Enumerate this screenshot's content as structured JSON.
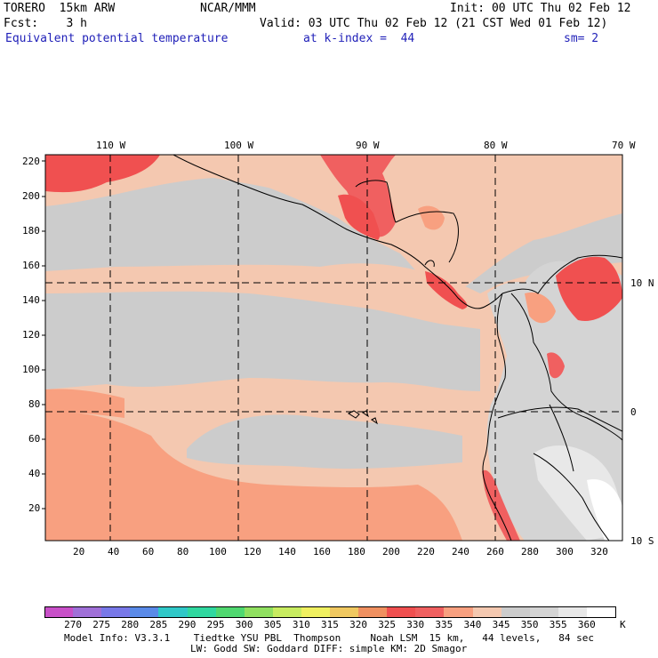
{
  "header": {
    "model": "TORERO  15km ARW",
    "org": "NCAR/MMM",
    "init": "Init: 00 UTC Thu 02 Feb 12",
    "fcst": "Fcst:    3 h",
    "valid": "Valid: 03 UTC Thu 02 Feb 12 (21 CST Wed 01 Feb 12)",
    "field": "Equivalent potential temperature",
    "level": "at k-index =  44",
    "smooth": "sm= 2"
  },
  "map": {
    "lon_labels": [
      "110 W",
      "100 W",
      "90 W",
      "80 W",
      "70 W"
    ],
    "lat_labels": [
      "10 N",
      "0",
      "10 S"
    ],
    "y_ticks": [
      "220",
      "200",
      "180",
      "160",
      "140",
      "120",
      "100",
      "80",
      "60",
      "40",
      "20"
    ],
    "x_ticks": [
      "20",
      "40",
      "60",
      "80",
      "100",
      "120",
      "140",
      "160",
      "180",
      "200",
      "220",
      "240",
      "260",
      "280",
      "300",
      "320"
    ]
  },
  "colorbar": {
    "unit": "K",
    "labels": [
      "270",
      "275",
      "280",
      "285",
      "290",
      "295",
      "300",
      "305",
      "310",
      "315",
      "320",
      "325",
      "330",
      "335",
      "340",
      "345",
      "350",
      "355",
      "360"
    ],
    "colors": [
      "#c850c8",
      "#a070d8",
      "#7878e8",
      "#5a8ae8",
      "#30c8c8",
      "#30d8a0",
      "#50d870",
      "#90e060",
      "#c8ec60",
      "#f0f060",
      "#f0c860",
      "#f09060",
      "#f05050",
      "#f06060",
      "#f8a080",
      "#f4c8b0",
      "#cccccc",
      "#d4d4d4",
      "#e8e8e8",
      "#ffffff"
    ]
  },
  "footer": {
    "line1": "Model Info: V3.3.1    Tiedtke YSU PBL  Thompson     Noah LSM  15 km,   44 levels,   84 sec",
    "line2": "LW: Godd SW: Goddard DIFF: simple KM: 2D Smagor"
  }
}
